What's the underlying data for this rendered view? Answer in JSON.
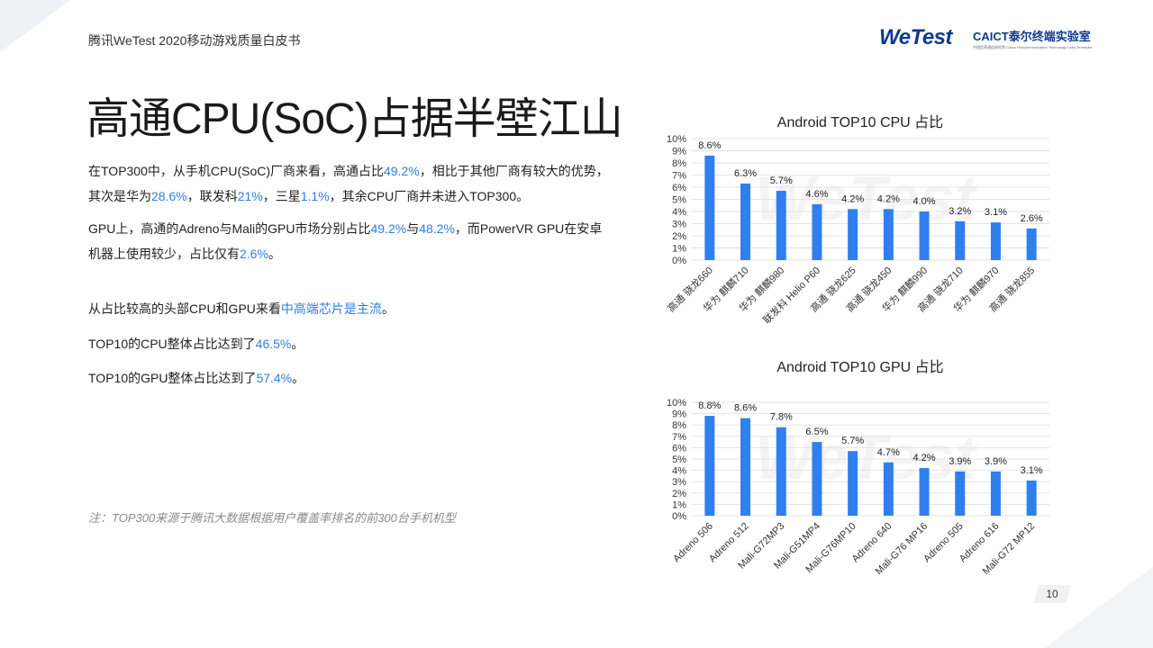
{
  "header": {
    "text": "腾讯WeTest   2020移动游戏质量白皮书"
  },
  "brand": {
    "wetest": "WeTest",
    "caict_en": "CAICT",
    "caict_cn": "泰尔终端实验室",
    "caict_sub_cn": "中国信息通信研究院",
    "caict_sub_en": "China Telecommunication Technology Labs-Terminals"
  },
  "title": "高通CPU(SoC)占据半壁江山",
  "paragraphs": {
    "p1": [
      {
        "t": "在TOP300中，从手机CPU(SoC)厂商来看，高通占比"
      },
      {
        "t": "49.2%",
        "hl": true
      },
      {
        "t": "，相比于其他厂商有较大的优势，其次是华为"
      },
      {
        "t": "28.6%",
        "hl": true
      },
      {
        "t": "，联发科"
      },
      {
        "t": "21%",
        "hl": true
      },
      {
        "t": "，三星"
      },
      {
        "t": "1.1%",
        "hl": true
      },
      {
        "t": "，其余CPU厂商并未进入TOP300。"
      }
    ],
    "p2": [
      {
        "t": "GPU上，高通的Adreno与Mali的GPU市场分别占比"
      },
      {
        "t": "49.2%",
        "hl": true
      },
      {
        "t": "与"
      },
      {
        "t": "48.2%",
        "hl": true
      },
      {
        "t": "，而PowerVR GPU在安卓机器上使用较少，占比仅有"
      },
      {
        "t": "2.6%",
        "hl": true
      },
      {
        "t": "。"
      }
    ],
    "p3": [
      {
        "t": "从占比较高的头部CPU和GPU来看"
      },
      {
        "t": "中高端芯片是主流",
        "hl": true
      },
      {
        "t": "。"
      }
    ],
    "p4": [
      {
        "t": "TOP10的CPU整体占比达到了"
      },
      {
        "t": "46.5%",
        "hl": true
      },
      {
        "t": "。"
      }
    ],
    "p5": [
      {
        "t": "TOP10的GPU整体占比达到了"
      },
      {
        "t": "57.4%",
        "hl": true
      },
      {
        "t": "。"
      }
    ]
  },
  "note": "注：TOP300来源于腾讯大数据根据用户覆盖率排名的前300台手机机型",
  "page_number": "10",
  "watermark": "WeTest",
  "colors": {
    "bar": "#2f7fef",
    "highlight": "#2f7de1",
    "brand": "#0e3a8c"
  },
  "chart_data": [
    {
      "type": "bar",
      "title": "Android TOP10 CPU 占比",
      "categories": [
        "高通 骁龙660",
        "华为 麒麟710",
        "华为 麒麟980",
        "联发科 Helio P60",
        "高通 骁龙625",
        "高通 骁龙450",
        "华为 麒麟990",
        "高通 骁龙710",
        "华为 麒麟970",
        "高通 骁龙855"
      ],
      "values": [
        8.6,
        6.3,
        5.7,
        4.6,
        4.2,
        4.2,
        4.0,
        3.2,
        3.1,
        2.6
      ],
      "labels": [
        "8.6%",
        "6.3%",
        "5.7%",
        "4.6%",
        "4.2%",
        "4.2%",
        "4.0%",
        "3.2%",
        "3.1%",
        "2.6%"
      ],
      "ylim": [
        0,
        10
      ],
      "yticks": [
        "0%",
        "1%",
        "2%",
        "3%",
        "4%",
        "5%",
        "6%",
        "7%",
        "8%",
        "9%",
        "10%"
      ],
      "grid": true
    },
    {
      "type": "bar",
      "title": "Android TOP10 GPU 占比",
      "categories": [
        "Adreno 506",
        "Adreno 512",
        "Mali-G72MP3",
        "Mali-G51MP4",
        "Mali-G76MP10",
        "Adreno 640",
        "Mali-G76 MP16",
        "Adreno 505",
        "Adreno 616",
        "Mali-G72 MP12"
      ],
      "values": [
        8.8,
        8.6,
        7.8,
        6.5,
        5.7,
        4.7,
        4.2,
        3.9,
        3.9,
        3.1
      ],
      "labels": [
        "8.8%",
        "8.6%",
        "7.8%",
        "6.5%",
        "5.7%",
        "4.7%",
        "4.2%",
        "3.9%",
        "3.9%",
        "3.1%"
      ],
      "ylim": [
        0,
        10
      ],
      "yticks": [
        "0%",
        "1%",
        "2%",
        "3%",
        "4%",
        "5%",
        "6%",
        "7%",
        "8%",
        "9%",
        "10%"
      ],
      "grid": true
    }
  ]
}
